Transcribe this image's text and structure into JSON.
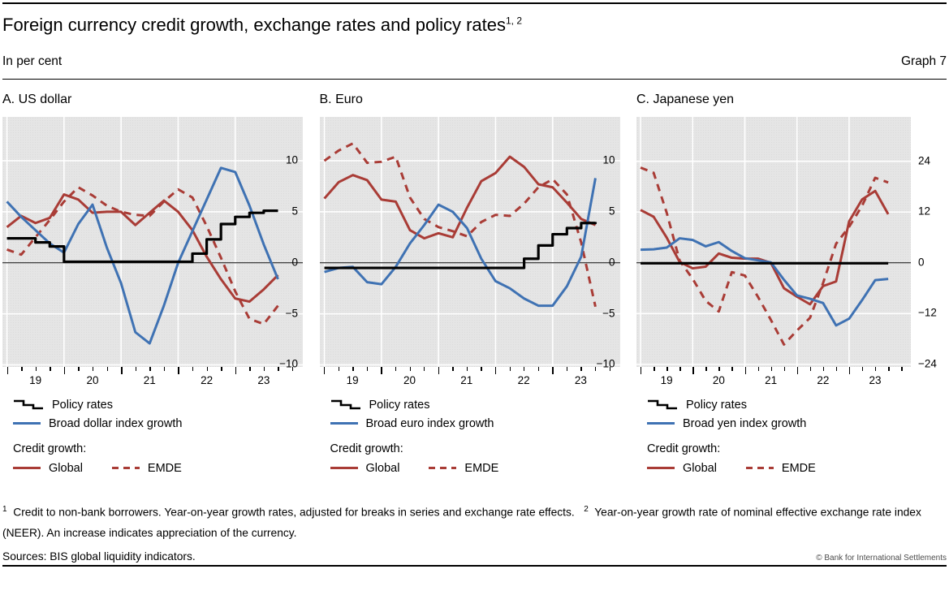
{
  "header": {
    "title": "Foreign currency credit growth, exchange rates and policy rates",
    "title_superscript": "1, 2",
    "subtitle": "In per cent",
    "graph_label": "Graph 7"
  },
  "colors": {
    "policy": "#000000",
    "index_growth": "#3f72b3",
    "credit": "#a93c36",
    "plot_background": "#e5e5e5"
  },
  "panels": [
    {
      "title": "A. US dollar",
      "legend": {
        "policy_label": "Policy rates",
        "index_label": "Broad dollar index growth",
        "credit_heading": "Credit growth:",
        "global_label": "Global",
        "emde_label": "EMDE"
      }
    },
    {
      "title": "B. Euro",
      "legend": {
        "policy_label": "Policy rates",
        "index_label": "Broad euro index growth",
        "credit_heading": "Credit growth:",
        "global_label": "Global",
        "emde_label": "EMDE"
      }
    },
    {
      "title": "C. Japanese yen",
      "legend": {
        "policy_label": "Policy rates",
        "index_label": "Broad yen index growth",
        "credit_heading": "Credit growth:",
        "global_label": "Global",
        "emde_label": "EMDE"
      }
    }
  ],
  "chart_data": [
    {
      "type": "line",
      "title": "A. US dollar",
      "x": [
        "19Q1",
        "19Q2",
        "19Q3",
        "19Q4",
        "20Q1",
        "20Q2",
        "20Q3",
        "20Q4",
        "21Q1",
        "21Q2",
        "21Q3",
        "21Q4",
        "22Q1",
        "22Q2",
        "22Q3",
        "22Q4",
        "23Q1",
        "23Q2",
        "23Q3",
        "23Q4"
      ],
      "x_tick_labels": [
        "19",
        "20",
        "21",
        "22",
        "23"
      ],
      "ylim": [
        -10.2,
        14.3
      ],
      "y_ticks": [
        10,
        5,
        0,
        -5,
        -10
      ],
      "y_tick_labels": [
        "10",
        "5",
        "0",
        "−5",
        "−10"
      ],
      "grid": true,
      "legend_position": "below",
      "series": [
        {
          "name": "Policy rates",
          "style": "step",
          "color": "#000000",
          "values": [
            2.4,
            2.4,
            2.0,
            1.6,
            0.1,
            0.1,
            0.1,
            0.1,
            0.1,
            0.1,
            0.1,
            0.1,
            0.1,
            0.9,
            2.3,
            3.8,
            4.5,
            4.9,
            5.1,
            5.1
          ]
        },
        {
          "name": "Broad dollar index growth",
          "style": "line",
          "color": "#3f72b3",
          "values": [
            6.0,
            4.5,
            3.2,
            1.9,
            1.0,
            3.8,
            5.7,
            1.5,
            -2.0,
            -6.8,
            -7.9,
            -4.2,
            0.0,
            3.1,
            6.2,
            9.3,
            8.9,
            5.6,
            1.8,
            -1.6
          ]
        },
        {
          "name": "Credit growth: Global",
          "style": "line",
          "color": "#a93c36",
          "values": [
            3.5,
            4.6,
            3.9,
            4.4,
            6.7,
            6.2,
            4.9,
            5.0,
            5.0,
            3.7,
            4.9,
            6.1,
            5.0,
            3.2,
            0.6,
            -1.6,
            -3.5,
            -3.8,
            -2.6,
            -1.2
          ]
        },
        {
          "name": "Credit growth: EMDE",
          "style": "dashed",
          "color": "#a93c36",
          "values": [
            1.3,
            0.8,
            2.5,
            4.2,
            6.0,
            7.4,
            6.6,
            5.6,
            5.0,
            4.7,
            4.6,
            6.0,
            7.2,
            6.4,
            3.6,
            0.5,
            -2.8,
            -5.5,
            -6.0,
            -4.2
          ]
        }
      ]
    },
    {
      "type": "line",
      "title": "B. Euro",
      "x": [
        "19Q1",
        "19Q2",
        "19Q3",
        "19Q4",
        "20Q1",
        "20Q2",
        "20Q3",
        "20Q4",
        "21Q1",
        "21Q2",
        "21Q3",
        "21Q4",
        "22Q1",
        "22Q2",
        "22Q3",
        "22Q4",
        "23Q1",
        "23Q2",
        "23Q3",
        "23Q4"
      ],
      "x_tick_labels": [
        "19",
        "20",
        "21",
        "22",
        "23"
      ],
      "ylim": [
        -10.2,
        14.3
      ],
      "y_ticks": [
        10,
        5,
        0,
        -5,
        -10
      ],
      "y_tick_labels": [
        "10",
        "5",
        "0",
        "−5",
        "−10"
      ],
      "grid": true,
      "legend_position": "below",
      "series": [
        {
          "name": "Policy rates",
          "style": "step",
          "color": "#000000",
          "values": [
            -0.5,
            -0.5,
            -0.5,
            -0.5,
            -0.5,
            -0.5,
            -0.5,
            -0.5,
            -0.5,
            -0.5,
            -0.5,
            -0.5,
            -0.5,
            -0.5,
            0.4,
            1.7,
            2.8,
            3.4,
            3.9,
            4.0
          ]
        },
        {
          "name": "Broad euro index growth",
          "style": "line",
          "color": "#3f72b3",
          "values": [
            -0.9,
            -0.5,
            -0.4,
            -1.9,
            -2.1,
            -0.4,
            1.9,
            3.7,
            5.7,
            5.0,
            3.4,
            0.4,
            -1.8,
            -2.5,
            -3.5,
            -4.2,
            -4.2,
            -2.3,
            0.6,
            8.3
          ]
        },
        {
          "name": "Credit growth: Global",
          "style": "line",
          "color": "#a93c36",
          "values": [
            6.3,
            7.9,
            8.6,
            8.1,
            6.2,
            6.0,
            3.2,
            2.4,
            2.9,
            2.5,
            5.4,
            8.0,
            8.8,
            10.4,
            9.4,
            7.7,
            7.4,
            5.9,
            4.3,
            3.7
          ]
        },
        {
          "name": "Credit growth: EMDE",
          "style": "dashed",
          "color": "#a93c36",
          "values": [
            10.0,
            11.0,
            11.7,
            9.8,
            9.9,
            10.4,
            6.4,
            4.3,
            3.5,
            3.1,
            2.6,
            4.0,
            4.7,
            4.6,
            5.8,
            7.4,
            8.2,
            6.7,
            2.0,
            -4.3
          ]
        }
      ]
    },
    {
      "type": "line",
      "title": "C. Japanese yen",
      "x": [
        "19Q1",
        "19Q2",
        "19Q3",
        "19Q4",
        "20Q1",
        "20Q2",
        "20Q3",
        "20Q4",
        "21Q1",
        "21Q2",
        "21Q3",
        "21Q4",
        "22Q1",
        "22Q2",
        "22Q3",
        "22Q4",
        "23Q1",
        "23Q2",
        "23Q3",
        "23Q4"
      ],
      "x_tick_labels": [
        "19",
        "20",
        "21",
        "22",
        "23"
      ],
      "ylim": [
        -24.6,
        34.5
      ],
      "y_ticks": [
        24,
        12,
        0,
        -12,
        -24
      ],
      "y_tick_labels": [
        "24",
        "12",
        "0",
        "−12",
        "−24"
      ],
      "grid": true,
      "legend_position": "below",
      "series": [
        {
          "name": "Policy rates",
          "style": "step",
          "color": "#000000",
          "values": [
            -0.1,
            -0.1,
            -0.1,
            -0.1,
            -0.1,
            -0.1,
            -0.1,
            -0.1,
            -0.1,
            -0.1,
            -0.1,
            -0.1,
            -0.1,
            -0.1,
            -0.1,
            -0.1,
            -0.1,
            -0.1,
            -0.1,
            -0.1
          ]
        },
        {
          "name": "Broad yen index growth",
          "style": "line",
          "color": "#3f72b3",
          "values": [
            3.1,
            3.2,
            3.6,
            5.8,
            5.4,
            3.9,
            4.9,
            2.8,
            1.1,
            0.6,
            0.1,
            -4.0,
            -7.7,
            -8.5,
            -9.5,
            -14.8,
            -13.2,
            -8.8,
            -4.1,
            -3.8
          ]
        },
        {
          "name": "Credit growth: Global",
          "style": "line",
          "color": "#a93c36",
          "values": [
            12.5,
            10.9,
            6.0,
            0.2,
            -1.3,
            -0.9,
            2.2,
            1.2,
            1.0,
            1.0,
            0.0,
            -6.0,
            -8.0,
            -9.8,
            -5.5,
            -4.4,
            9.8,
            15.0,
            17.0,
            11.5
          ]
        },
        {
          "name": "Credit growth: EMDE",
          "style": "dashed",
          "color": "#a93c36",
          "values": [
            22.5,
            21.3,
            11.9,
            0.5,
            -3.8,
            -9.0,
            -11.5,
            -2.2,
            -3.0,
            -8.0,
            -13.5,
            -19.3,
            -16.0,
            -13.0,
            -4.8,
            4.5,
            8.5,
            13.5,
            20.1,
            19.0
          ]
        }
      ]
    }
  ],
  "footnotes": {
    "fn1_marker": "1",
    "fn1_text": "Credit to non-bank borrowers. Year-on-year growth rates, adjusted for breaks in series and exchange rate effects.",
    "fn2_marker": "2",
    "fn2_text": "Year-on-year growth rate of nominal effective exchange rate index (NEER). An increase indicates appreciation of the currency.",
    "sources": "Sources: BIS global liquidity indicators.",
    "copyright": "© Bank for International Settlements"
  }
}
